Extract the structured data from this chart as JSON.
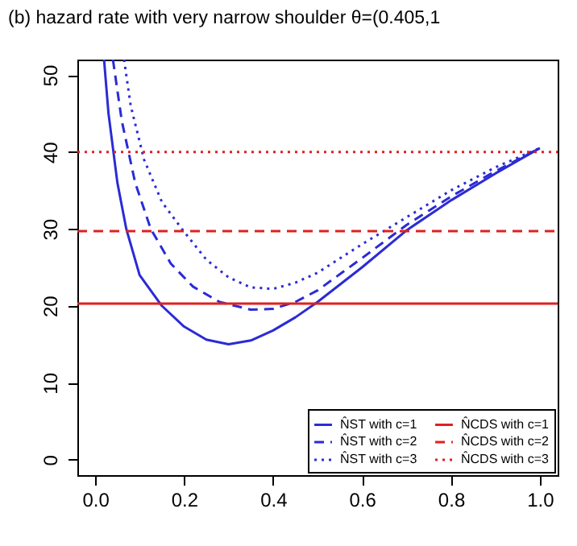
{
  "chart_data": {
    "type": "line",
    "title": "(b) hazard rate with very narrow shoulder θ=(0.405,1",
    "xlim": [
      -0.04,
      1.04
    ],
    "ylim": [
      -2,
      52
    ],
    "xticks": [
      {
        "value": 0,
        "label": "0.0"
      },
      0.2,
      0.4,
      0.6,
      0.8,
      {
        "value": 1,
        "label": "1.0"
      }
    ],
    "yticks": [
      0,
      10,
      20,
      30,
      40,
      50
    ],
    "grid": false,
    "legend": "bottom right",
    "marker": "none",
    "series": [
      {
        "name": "N̂ST with c=1",
        "color": "#2b2bd6",
        "line_style": "solid",
        "x": [
          0.02,
          0.03,
          0.05,
          0.07,
          0.1,
          0.15,
          0.2,
          0.25,
          0.3,
          0.35,
          0.4,
          0.45,
          0.5,
          0.6,
          0.7,
          0.8,
          0.9,
          1.0
        ],
        "values": [
          52,
          45,
          36,
          30,
          24,
          20,
          17.3,
          15.6,
          15,
          15.5,
          16.8,
          18.5,
          20.5,
          25,
          29.8,
          33.7,
          37.2,
          40.5
        ]
      },
      {
        "name": "N̂ST with c=2",
        "color": "#2b2bd6",
        "line_style": "dashed",
        "x": [
          0.04,
          0.06,
          0.09,
          0.125,
          0.17,
          0.22,
          0.28,
          0.35,
          0.4,
          0.45,
          0.5,
          0.6,
          0.7,
          0.8,
          0.9,
          1.0
        ],
        "values": [
          52,
          44,
          36,
          30,
          25.5,
          22.5,
          20.5,
          19.5,
          19.6,
          20.5,
          22,
          26.2,
          30.5,
          34.2,
          37.5,
          40.5
        ]
      },
      {
        "name": "N̂ST with c=3",
        "color": "#2b2bd6",
        "line_style": "dotted",
        "x": [
          0.065,
          0.08,
          0.11,
          0.15,
          0.195,
          0.25,
          0.3,
          0.35,
          0.4,
          0.45,
          0.5,
          0.6,
          0.7,
          0.8,
          0.9,
          1.0
        ],
        "values": [
          52,
          46,
          39,
          33.5,
          30,
          26,
          23.7,
          22.4,
          22.2,
          23,
          24.3,
          28,
          31.5,
          35,
          38,
          40.5
        ]
      },
      {
        "name": "N̂CDS with c=1",
        "color": "#e02020",
        "line_style": "solid",
        "x": [
          -0.04,
          1.04
        ],
        "values": [
          20.3,
          20.3
        ]
      },
      {
        "name": "N̂CDS with c=2",
        "color": "#e02020",
        "line_style": "dashed",
        "x": [
          -0.04,
          1.04
        ],
        "values": [
          29.7,
          29.7
        ]
      },
      {
        "name": "N̂CDS with c=3",
        "color": "#e02020",
        "line_style": "dotted",
        "x": [
          -0.04,
          1.04
        ],
        "values": [
          40,
          40
        ]
      }
    ]
  }
}
